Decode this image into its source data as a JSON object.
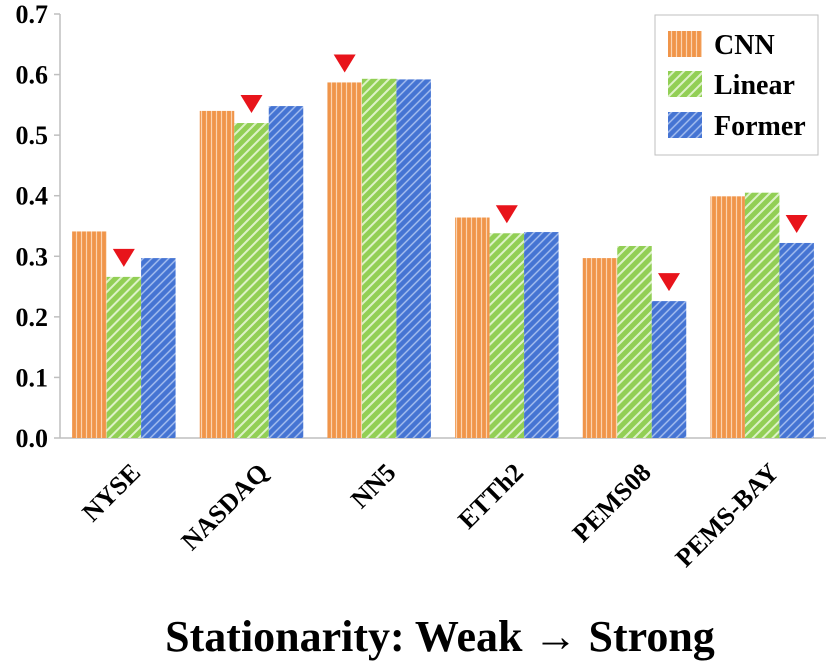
{
  "chart_data": {
    "type": "bar",
    "title": "",
    "xlabel": "Stationarity:  Weak → Strong",
    "ylabel": "",
    "ylim": [
      0,
      0.7
    ],
    "yticks": [
      0.0,
      0.1,
      0.2,
      0.3,
      0.4,
      0.5,
      0.6,
      0.7
    ],
    "ytick_labels": [
      "0.0",
      "0.1",
      "0.2",
      "0.3",
      "0.4",
      "0.5",
      "0.6",
      "0.7"
    ],
    "categories": [
      "NYSE",
      "NASDAQ",
      "NN5",
      "ETTh2",
      "PEMS08",
      "PEMS-BAY"
    ],
    "series": [
      {
        "name": "CNN",
        "color": "#F0954A",
        "values": [
          0.341,
          0.54,
          0.587,
          0.364,
          0.297,
          0.399
        ]
      },
      {
        "name": "Linear",
        "color": "#9BD563",
        "values": [
          0.266,
          0.52,
          0.593,
          0.338,
          0.317,
          0.405
        ]
      },
      {
        "name": "Former",
        "color": "#4E79D6",
        "values": [
          0.297,
          0.548,
          0.592,
          0.34,
          0.226,
          0.322
        ]
      }
    ],
    "markers": [
      {
        "category": "NYSE",
        "series": "Linear",
        "symbol": "down-triangle",
        "color": "#E8141B"
      },
      {
        "category": "NASDAQ",
        "series": "Linear",
        "symbol": "down-triangle",
        "color": "#E8141B"
      },
      {
        "category": "NN5",
        "series": "CNN",
        "symbol": "down-triangle",
        "color": "#E8141B"
      },
      {
        "category": "ETTh2",
        "series": "Linear",
        "symbol": "down-triangle",
        "color": "#E8141B"
      },
      {
        "category": "PEMS08",
        "series": "Former",
        "symbol": "down-triangle",
        "color": "#E8141B"
      },
      {
        "category": "PEMS-BAY",
        "series": "Former",
        "symbol": "down-triangle",
        "color": "#E8141B"
      }
    ],
    "legend_position": "top-right",
    "grid": false
  }
}
